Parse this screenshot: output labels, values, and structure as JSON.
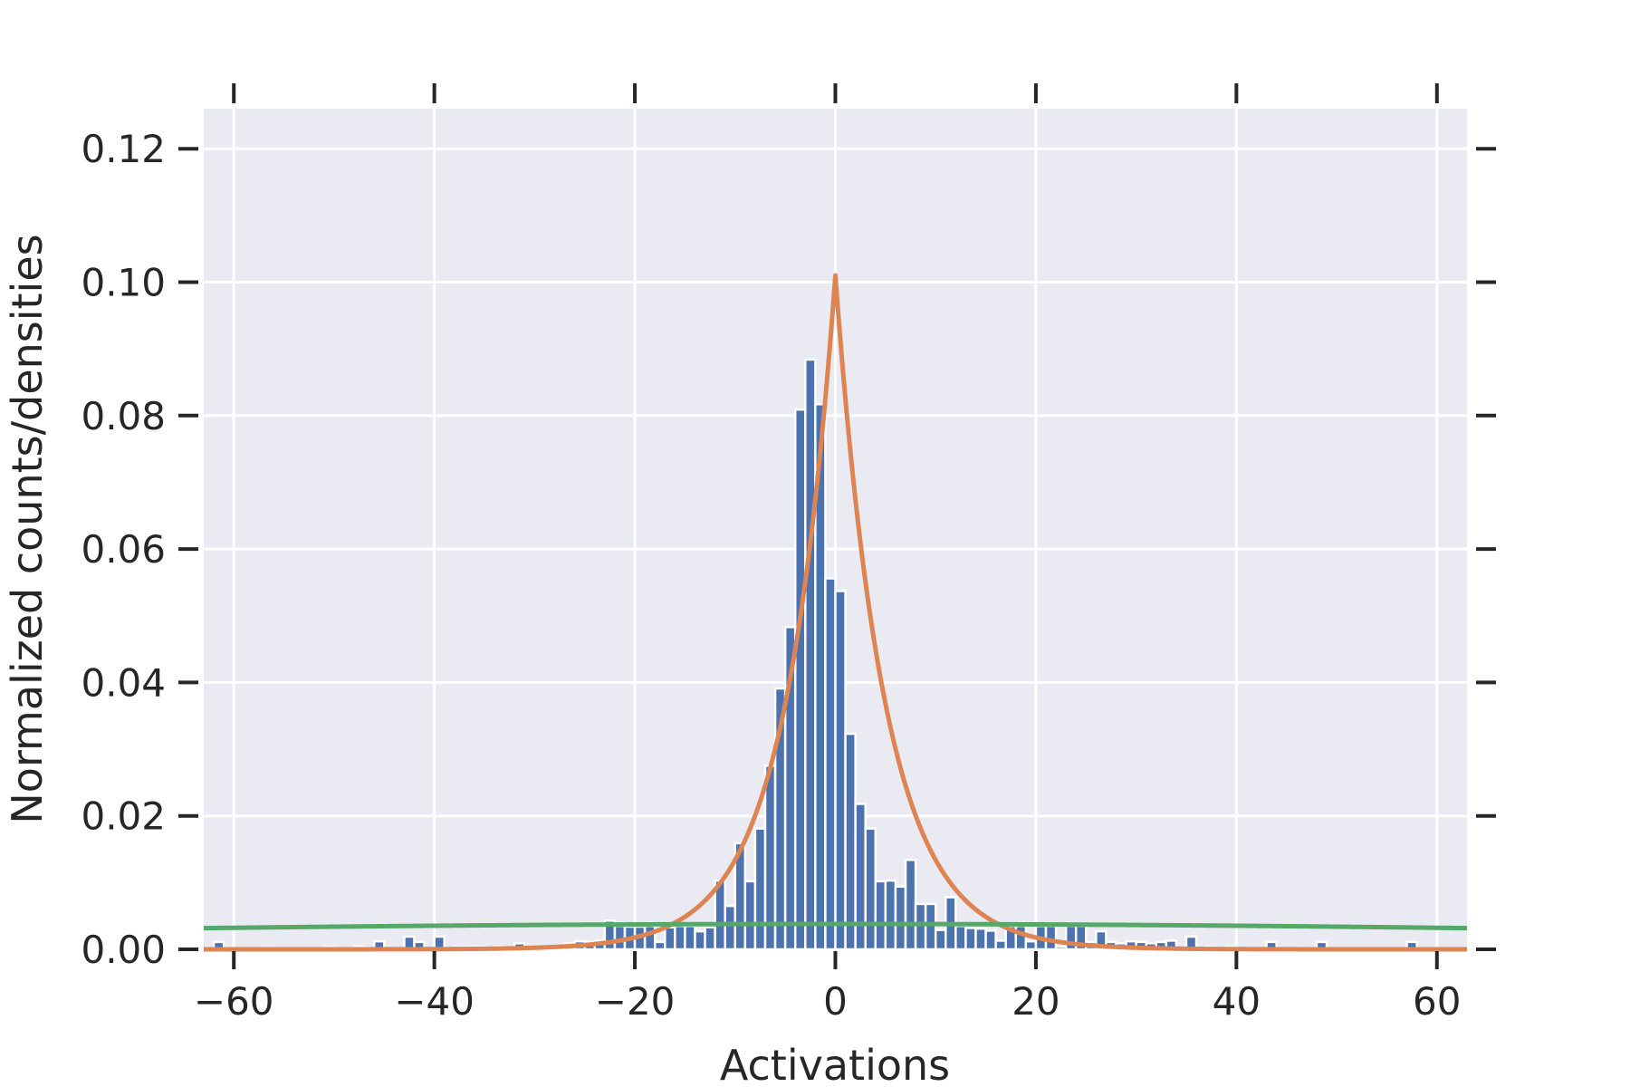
{
  "chart_data": {
    "type": "bar",
    "title": "",
    "xlabel": "Activations",
    "ylabel": "Normalized counts/densities",
    "xlim": [
      -63,
      63
    ],
    "ylim": [
      0,
      0.126
    ],
    "x_ticks": [
      -60,
      -40,
      -20,
      0,
      20,
      40,
      60
    ],
    "x_tick_labels": [
      "−60",
      "−40",
      "−20",
      "0",
      "20",
      "40",
      "60"
    ],
    "y_ticks": [
      0.0,
      0.02,
      0.04,
      0.06,
      0.08,
      0.1,
      0.12
    ],
    "y_tick_labels": [
      "0.00",
      "0.02",
      "0.04",
      "0.06",
      "0.08",
      "0.10",
      "0.12"
    ],
    "grid": true,
    "legend": "none",
    "bin_width": 1.0,
    "histogram": {
      "color": "#4C72B0",
      "bins": [
        {
          "x": -61.5,
          "y": 0.0011
        },
        {
          "x": -56.5,
          "y": 0.0002
        },
        {
          "x": -50.5,
          "y": 0.0003
        },
        {
          "x": -47.5,
          "y": 0.0004
        },
        {
          "x": -45.5,
          "y": 0.0012
        },
        {
          "x": -42.5,
          "y": 0.0019
        },
        {
          "x": -41.5,
          "y": 0.0011
        },
        {
          "x": -39.5,
          "y": 0.0019
        },
        {
          "x": -37.5,
          "y": 0.0004
        },
        {
          "x": -36.5,
          "y": 0.0004
        },
        {
          "x": -35.5,
          "y": 0.0004
        },
        {
          "x": -34.5,
          "y": 0.0003
        },
        {
          "x": -33.5,
          "y": 0.0004
        },
        {
          "x": -31.5,
          "y": 0.0009
        },
        {
          "x": -30.5,
          "y": 0.0004
        },
        {
          "x": -29.5,
          "y": 0.0004
        },
        {
          "x": -28.5,
          "y": 0.0004
        },
        {
          "x": -26.5,
          "y": 0.0009
        },
        {
          "x": -25.5,
          "y": 0.0012
        },
        {
          "x": -24.5,
          "y": 0.0011
        },
        {
          "x": -23.5,
          "y": 0.0013
        },
        {
          "x": -22.5,
          "y": 0.0043
        },
        {
          "x": -21.5,
          "y": 0.0035
        },
        {
          "x": -20.5,
          "y": 0.0034
        },
        {
          "x": -19.5,
          "y": 0.0034
        },
        {
          "x": -18.5,
          "y": 0.0035
        },
        {
          "x": -17.5,
          "y": 0.0011
        },
        {
          "x": -16.5,
          "y": 0.0033
        },
        {
          "x": -15.5,
          "y": 0.0035
        },
        {
          "x": -14.5,
          "y": 0.0035
        },
        {
          "x": -13.5,
          "y": 0.0027
        },
        {
          "x": -12.5,
          "y": 0.0033
        },
        {
          "x": -11.5,
          "y": 0.0103
        },
        {
          "x": -10.5,
          "y": 0.0065
        },
        {
          "x": -9.5,
          "y": 0.0159
        },
        {
          "x": -8.5,
          "y": 0.0102
        },
        {
          "x": -7.5,
          "y": 0.0181
        },
        {
          "x": -6.5,
          "y": 0.0275
        },
        {
          "x": -5.5,
          "y": 0.0391
        },
        {
          "x": -4.5,
          "y": 0.0483
        },
        {
          "x": -3.5,
          "y": 0.0809
        },
        {
          "x": -2.5,
          "y": 0.0884
        },
        {
          "x": -1.5,
          "y": 0.0817
        },
        {
          "x": -0.5,
          "y": 0.0556
        },
        {
          "x": 0.5,
          "y": 0.0537
        },
        {
          "x": 1.5,
          "y": 0.0323
        },
        {
          "x": 2.5,
          "y": 0.0218
        },
        {
          "x": 3.5,
          "y": 0.0181
        },
        {
          "x": 4.5,
          "y": 0.0102
        },
        {
          "x": 5.5,
          "y": 0.0103
        },
        {
          "x": 6.5,
          "y": 0.0094
        },
        {
          "x": 7.5,
          "y": 0.0134
        },
        {
          "x": 8.5,
          "y": 0.0068
        },
        {
          "x": 9.5,
          "y": 0.0068
        },
        {
          "x": 10.5,
          "y": 0.0029
        },
        {
          "x": 11.5,
          "y": 0.0078
        },
        {
          "x": 12.5,
          "y": 0.0035
        },
        {
          "x": 13.5,
          "y": 0.0032
        },
        {
          "x": 14.5,
          "y": 0.0031
        },
        {
          "x": 15.5,
          "y": 0.0028
        },
        {
          "x": 16.5,
          "y": 0.0013
        },
        {
          "x": 17.5,
          "y": 0.0035
        },
        {
          "x": 18.5,
          "y": 0.0035
        },
        {
          "x": 19.5,
          "y": 0.0012
        },
        {
          "x": 20.5,
          "y": 0.0035
        },
        {
          "x": 21.5,
          "y": 0.0035
        },
        {
          "x": 22.5,
          "y": 0.0004
        },
        {
          "x": 23.5,
          "y": 0.0035
        },
        {
          "x": 24.5,
          "y": 0.0035
        },
        {
          "x": 25.5,
          "y": 0.0011
        },
        {
          "x": 26.5,
          "y": 0.0027
        },
        {
          "x": 27.5,
          "y": 0.0011
        },
        {
          "x": 28.5,
          "y": 0.0009
        },
        {
          "x": 29.5,
          "y": 0.0012
        },
        {
          "x": 30.5,
          "y": 0.0011
        },
        {
          "x": 31.5,
          "y": 0.0009
        },
        {
          "x": 32.5,
          "y": 0.0011
        },
        {
          "x": 33.5,
          "y": 0.0013
        },
        {
          "x": 35.5,
          "y": 0.0019
        },
        {
          "x": 37.5,
          "y": 0.0004
        },
        {
          "x": 39.5,
          "y": 0.0004
        },
        {
          "x": 43.5,
          "y": 0.0011
        },
        {
          "x": 48.5,
          "y": 0.0011
        },
        {
          "x": 57.5,
          "y": 0.0011
        }
      ]
    },
    "curves": [
      {
        "kind": "laplace",
        "color": "#DD8452",
        "loc": 0,
        "scale": 4.95
      },
      {
        "kind": "gaussian",
        "color": "#55A868",
        "mean": 0,
        "std": 105
      }
    ]
  }
}
